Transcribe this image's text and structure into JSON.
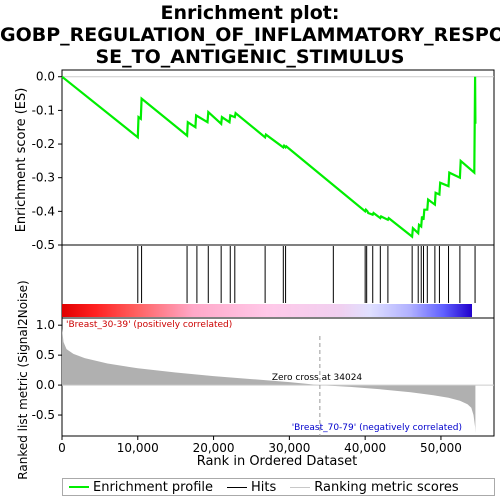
{
  "title_lines": [
    "Enrichment plot:",
    "GOBP_REGULATION_OF_INFLAMMATORY_RESPON",
    "SE_TO_ANTIGENIC_STIMULUS"
  ],
  "colors": {
    "es_line": "#00ee00",
    "hits": "#000000",
    "metric_fill": "#b0b0b0",
    "pos_label": "#cc0000",
    "neg_label": "#0000cc",
    "legend_ranking": "#c8c8c8"
  },
  "chart_data": {
    "type": "line",
    "panels": [
      {
        "name": "enrichment",
        "ylabel": "Enrichment score (ES)",
        "ylim": [
          -0.5,
          0.02
        ],
        "yticks": [
          "0.0",
          "-0.1",
          "-0.2",
          "-0.3",
          "-0.4",
          "-0.5"
        ],
        "ytick_values": [
          0.0,
          -0.1,
          -0.2,
          -0.3,
          -0.4,
          -0.5
        ],
        "xlim": [
          0,
          57000
        ],
        "series": [
          {
            "name": "Enrichment profile",
            "x": [
              0,
              10000,
              10100,
              10400,
              10500,
              16500,
              16600,
              17600,
              17700,
              19200,
              19300,
              21000,
              21100,
              22100,
              22200,
              22800,
              22900,
              26800,
              26900,
              29200,
              29300,
              29500,
              29600,
              40000,
              40100,
              40300,
              40400,
              41000,
              41100,
              42000,
              42100,
              43000,
              43100,
              46200,
              46300,
              47000,
              47100,
              47400,
              47500,
              47700,
              47800,
              48200,
              48300,
              49200,
              49300,
              49800,
              49900,
              51000,
              51100,
              52500,
              52600,
              54400,
              54500,
              54550
            ],
            "y": [
              0.0,
              -0.18,
              -0.12,
              -0.125,
              -0.065,
              -0.175,
              -0.135,
              -0.15,
              -0.115,
              -0.135,
              -0.105,
              -0.14,
              -0.12,
              -0.135,
              -0.115,
              -0.12,
              -0.108,
              -0.18,
              -0.172,
              -0.21,
              -0.205,
              -0.21,
              -0.207,
              -0.4,
              -0.395,
              -0.4,
              -0.405,
              -0.41,
              -0.405,
              -0.42,
              -0.415,
              -0.425,
              -0.42,
              -0.475,
              -0.45,
              -0.465,
              -0.44,
              -0.445,
              -0.415,
              -0.425,
              -0.395,
              -0.395,
              -0.365,
              -0.38,
              -0.345,
              -0.35,
              -0.315,
              -0.325,
              -0.285,
              -0.3,
              -0.25,
              -0.285,
              0.0,
              -0.14
            ]
          }
        ]
      },
      {
        "name": "hits",
        "hit_positions": [
          10000,
          10500,
          16500,
          17800,
          19300,
          21000,
          22200,
          22800,
          26800,
          29200,
          29500,
          35800,
          40000,
          40200,
          41000,
          42000,
          43000,
          46200,
          47000,
          47400,
          47700,
          48200,
          49200,
          49800,
          51000,
          52500,
          54500
        ]
      },
      {
        "name": "ranking_metric",
        "ylabel": "Ranked list metric (Signal2Noise)",
        "xlabel": "Rank in Ordered Dataset",
        "ylim": [
          -0.85,
          1.12
        ],
        "yticks": [
          "1.0",
          "0.5",
          "0.0",
          "-0.5"
        ],
        "ytick_values": [
          1.0,
          0.5,
          0.0,
          -0.5
        ],
        "xticks": [
          "0",
          "10,000",
          "20,000",
          "30,000",
          "40,000",
          "50,000"
        ],
        "xtick_values": [
          0,
          10000,
          20000,
          30000,
          40000,
          50000
        ],
        "zero_cross": 34024,
        "zero_cross_label": "Zero cross at 34024",
        "pos_label": "'Breast_30-39' (positively correlated)",
        "neg_label": "'Breast_70-79' (negatively correlated)",
        "metric_x": [
          0,
          200,
          600,
          1500,
          3000,
          6000,
          10000,
          15000,
          20000,
          25000,
          30000,
          34024,
          38000,
          42000,
          46000,
          49000,
          51000,
          52500,
          53500,
          54000,
          54300,
          54500,
          54550
        ],
        "metric_y": [
          0.95,
          0.72,
          0.6,
          0.52,
          0.45,
          0.36,
          0.28,
          0.21,
          0.15,
          0.1,
          0.05,
          0.0,
          -0.03,
          -0.07,
          -0.12,
          -0.17,
          -0.21,
          -0.26,
          -0.32,
          -0.38,
          -0.5,
          -0.7,
          -0.8
        ]
      }
    ],
    "legend": [
      "Enrichment profile",
      "Hits",
      "Ranking metric scores"
    ]
  }
}
